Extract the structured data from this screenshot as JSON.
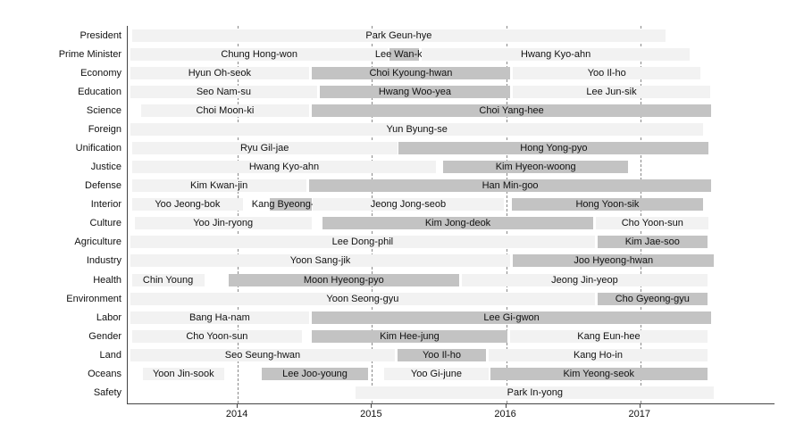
{
  "chart_data": {
    "type": "bar",
    "subtype": "gantt-timeline",
    "title": "",
    "xlabel": "",
    "ylabel": "",
    "legend": "none",
    "grid": "vertical-dashed",
    "x_axis": {
      "min": 2013.18,
      "max": 2018.0,
      "ticks": [
        2014,
        2015,
        2016,
        2017
      ],
      "tick_labels": [
        "2014",
        "2015",
        "2016",
        "2017"
      ]
    },
    "colors": {
      "light_bar": "#f2f2f2",
      "dark_bar": "#c3c3c3",
      "axis": "#444444",
      "grid": "#8a8a8a",
      "text": "#111111"
    },
    "rows": [
      {
        "category": "President",
        "segments": [
          {
            "label": "Park Geun-hye",
            "start": 2013.21,
            "end": 2017.19,
            "shade": "light"
          }
        ]
      },
      {
        "category": "Prime Minister",
        "segments": [
          {
            "label": "Chung Hong-won",
            "start": 2013.2,
            "end": 2015.12,
            "shade": "light"
          },
          {
            "label": "Lee Wan-koo",
            "start": 2015.13,
            "end": 2015.35,
            "shade": "dark"
          },
          {
            "label": "Hwang Kyo-ahn",
            "start": 2015.37,
            "end": 2017.37,
            "shade": "light"
          }
        ]
      },
      {
        "category": "Economy",
        "segments": [
          {
            "label": "Hyun Oh-seok",
            "start": 2013.2,
            "end": 2014.53,
            "shade": "light"
          },
          {
            "label": "Choi Kyoung-hwan",
            "start": 2014.55,
            "end": 2016.03,
            "shade": "dark"
          },
          {
            "label": "Yoo Il-ho",
            "start": 2016.05,
            "end": 2017.45,
            "shade": "light"
          }
        ]
      },
      {
        "category": "Education",
        "segments": [
          {
            "label": "Seo Nam-su",
            "start": 2013.2,
            "end": 2014.59,
            "shade": "light"
          },
          {
            "label": "Hwang Woo-yea",
            "start": 2014.61,
            "end": 2016.03,
            "shade": "dark"
          },
          {
            "label": "Lee Jun-sik",
            "start": 2016.05,
            "end": 2017.52,
            "shade": "light"
          }
        ]
      },
      {
        "category": "Science",
        "segments": [
          {
            "label": "Choi Moon-ki",
            "start": 2013.28,
            "end": 2014.53,
            "shade": "light"
          },
          {
            "label": "Choi Yang-hee",
            "start": 2014.55,
            "end": 2017.53,
            "shade": "dark"
          }
        ]
      },
      {
        "category": "Foreign",
        "segments": [
          {
            "label": "Yun Byung-se",
            "start": 2013.2,
            "end": 2017.47,
            "shade": "light"
          }
        ]
      },
      {
        "category": "Unification",
        "segments": [
          {
            "label": "Ryu Gil-jae",
            "start": 2013.21,
            "end": 2015.19,
            "shade": "light"
          },
          {
            "label": "Hong Yong-pyo",
            "start": 2015.2,
            "end": 2017.51,
            "shade": "dark"
          }
        ]
      },
      {
        "category": "Justice",
        "segments": [
          {
            "label": "Hwang Kyo-ahn",
            "start": 2013.21,
            "end": 2015.48,
            "shade": "light"
          },
          {
            "label": "Kim Hyeon-woong",
            "start": 2015.53,
            "end": 2016.91,
            "shade": "dark"
          }
        ]
      },
      {
        "category": "Defense",
        "segments": [
          {
            "label": "Kim Kwan-jin",
            "start": 2013.21,
            "end": 2014.51,
            "shade": "light"
          },
          {
            "label": "Han Min-goo",
            "start": 2014.53,
            "end": 2017.53,
            "shade": "dark"
          }
        ]
      },
      {
        "category": "Interior",
        "segments": [
          {
            "label": "Yoo Jeong-bok",
            "start": 2013.21,
            "end": 2014.04,
            "shade": "light"
          },
          {
            "label": "Kang Byeong-gyu",
            "start": 2014.24,
            "end": 2014.55,
            "shade": "dark"
          },
          {
            "label": "Jeong Jong-seob",
            "start": 2014.56,
            "end": 2015.98,
            "shade": "light"
          },
          {
            "label": "Hong Yoon-sik",
            "start": 2016.04,
            "end": 2017.47,
            "shade": "dark"
          }
        ]
      },
      {
        "category": "Culture",
        "segments": [
          {
            "label": "Yoo Jin-ryong",
            "start": 2013.23,
            "end": 2014.55,
            "shade": "light"
          },
          {
            "label": "Kim Jong-deok",
            "start": 2014.63,
            "end": 2016.65,
            "shade": "dark"
          },
          {
            "label": "Cho Yoon-sun",
            "start": 2016.67,
            "end": 2017.51,
            "shade": "light"
          }
        ]
      },
      {
        "category": "Agriculture",
        "segments": [
          {
            "label": "Lee Dong-phil",
            "start": 2013.2,
            "end": 2016.66,
            "shade": "light"
          },
          {
            "label": "Kim Jae-soo",
            "start": 2016.68,
            "end": 2017.5,
            "shade": "dark"
          }
        ]
      },
      {
        "category": "Industry",
        "segments": [
          {
            "label": "Yoon Sang-jik",
            "start": 2013.2,
            "end": 2016.03,
            "shade": "light"
          },
          {
            "label": "Joo Hyeong-hwan",
            "start": 2016.05,
            "end": 2017.55,
            "shade": "dark"
          }
        ]
      },
      {
        "category": "Health",
        "segments": [
          {
            "label": "Chin Young",
            "start": 2013.21,
            "end": 2013.75,
            "shade": "light"
          },
          {
            "label": "Moon Hyeong-pyo",
            "start": 2013.93,
            "end": 2015.65,
            "shade": "dark"
          },
          {
            "label": "Jeong Jin-yeop",
            "start": 2015.67,
            "end": 2017.5,
            "shade": "light"
          }
        ]
      },
      {
        "category": "Environment",
        "segments": [
          {
            "label": "Yoon Seong-gyu",
            "start": 2013.2,
            "end": 2016.66,
            "shade": "light"
          },
          {
            "label": "Cho Gyeong-gyu",
            "start": 2016.68,
            "end": 2017.5,
            "shade": "dark"
          }
        ]
      },
      {
        "category": "Labor",
        "segments": [
          {
            "label": "Bang Ha-nam",
            "start": 2013.2,
            "end": 2014.53,
            "shade": "light"
          },
          {
            "label": "Lee Gi-gwon",
            "start": 2014.55,
            "end": 2017.53,
            "shade": "dark"
          }
        ]
      },
      {
        "category": "Gender",
        "segments": [
          {
            "label": "Cho Yoon-sun",
            "start": 2013.21,
            "end": 2014.48,
            "shade": "light"
          },
          {
            "label": "Kim Hee-jung",
            "start": 2014.55,
            "end": 2016.01,
            "shade": "dark"
          },
          {
            "label": "Kang Eun-hee",
            "start": 2016.03,
            "end": 2017.5,
            "shade": "light"
          }
        ]
      },
      {
        "category": "Land",
        "segments": [
          {
            "label": "Seo Seung-hwan",
            "start": 2013.2,
            "end": 2015.17,
            "shade": "light"
          },
          {
            "label": "Yoo Il-ho",
            "start": 2015.19,
            "end": 2015.85,
            "shade": "dark"
          },
          {
            "label": "Kang Ho-in",
            "start": 2015.87,
            "end": 2017.5,
            "shade": "light"
          }
        ]
      },
      {
        "category": "Oceans",
        "segments": [
          {
            "label": "Yoon Jin-sook",
            "start": 2013.29,
            "end": 2013.9,
            "shade": "light"
          },
          {
            "label": "Lee Joo-young",
            "start": 2014.18,
            "end": 2014.97,
            "shade": "dark"
          },
          {
            "label": "Yoo Gi-june",
            "start": 2015.09,
            "end": 2015.87,
            "shade": "light"
          },
          {
            "label": "Kim Yeong-seok",
            "start": 2015.88,
            "end": 2017.5,
            "shade": "dark"
          }
        ]
      },
      {
        "category": "Safety",
        "segments": [
          {
            "label": "Park In-yong",
            "start": 2014.88,
            "end": 2017.55,
            "shade": "light"
          }
        ]
      }
    ]
  }
}
